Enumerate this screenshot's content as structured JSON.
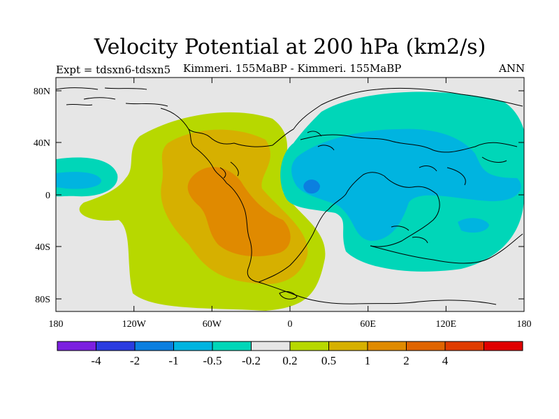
{
  "title": "Velocity Potential at 200 hPa (km2/s)",
  "subtitle_left": "Expt = tdsxn6-tdsxn5",
  "subtitle_center": "Kimmeri. 155MaBP - Kimmeri. 155MaBP",
  "subtitle_right": "ANN",
  "map": {
    "lat_ticks": [
      "80N",
      "40N",
      "0",
      "40S",
      "80S"
    ],
    "lon_ticks": [
      "180",
      "120W",
      "60W",
      "0",
      "60E",
      "120E",
      "180"
    ]
  },
  "colorbar": {
    "colors": [
      "#7b1fe0",
      "#2a3ce0",
      "#0b7fe0",
      "#00b4e0",
      "#00d6b8",
      "#e6e6e6",
      "#b7d800",
      "#d6b000",
      "#e08a00",
      "#e06400",
      "#e03c00",
      "#e00000"
    ],
    "labels": [
      "-4",
      "-2",
      "-1",
      "-0.5",
      "-0.2",
      "0.2",
      "0.5",
      "1",
      "2",
      "4"
    ]
  },
  "colors": {
    "neutral": "#e6e6e6",
    "pos_weak": "#b7d800",
    "pos_mid": "#d6b000",
    "pos_strong": "#e08a00",
    "neg_weak": "#00d6b8",
    "neg_mid": "#00b4e0",
    "neg_strong": "#0b7fe0"
  }
}
